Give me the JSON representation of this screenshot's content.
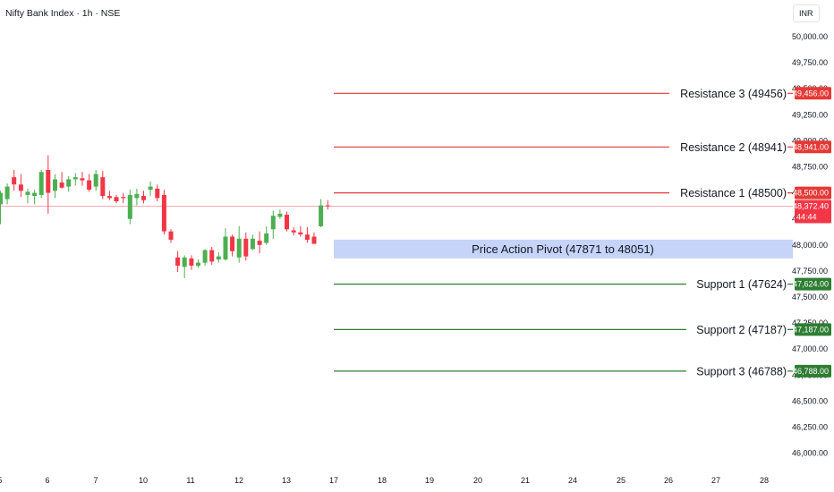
{
  "header": {
    "symbol_title": "Nifty Bank Index · 1h · NSE",
    "currency": "INR"
  },
  "colors": {
    "up": "#4caf50",
    "down": "#f23645",
    "resistance": "#e53935",
    "support": "#2e7d32",
    "pivot_zone": "#c5d4f8",
    "last_price_line": "#f4a9b0"
  },
  "chart_data": {
    "type": "candlestick",
    "title": "Nifty Bank Index · 1h · NSE",
    "currency": "INR",
    "ylim": [
      45900,
      50200
    ],
    "y_ticks": [
      "50,000.00",
      "49,750.00",
      "49,500.00",
      "49,250.00",
      "49,000.00",
      "48,750.00",
      "48,500.00",
      "48,250.00",
      "48,000.00",
      "47,750.00",
      "47,500.00",
      "47,250.00",
      "47,000.00",
      "46,750.00",
      "46,500.00",
      "46,250.00",
      "46,000.00"
    ],
    "x_ticks": [
      "5",
      "6",
      "7",
      "10",
      "11",
      "12",
      "13",
      "17",
      "18",
      "19",
      "20",
      "21",
      "24",
      "25",
      "26",
      "27",
      "28"
    ],
    "candles": [
      {
        "o": 48390,
        "h": 48520,
        "l": 48200,
        "c": 48500
      },
      {
        "o": 48440,
        "h": 48590,
        "l": 48390,
        "c": 48560
      },
      {
        "o": 48650,
        "h": 48720,
        "l": 48520,
        "c": 48580
      },
      {
        "o": 48580,
        "h": 48680,
        "l": 48460,
        "c": 48520
      },
      {
        "o": 48480,
        "h": 48540,
        "l": 48400,
        "c": 48510
      },
      {
        "o": 48470,
        "h": 48530,
        "l": 48390,
        "c": 48500
      },
      {
        "o": 48480,
        "h": 48720,
        "l": 48450,
        "c": 48700
      },
      {
        "o": 48720,
        "h": 48860,
        "l": 48300,
        "c": 48500
      },
      {
        "o": 48520,
        "h": 48680,
        "l": 48450,
        "c": 48630
      },
      {
        "o": 48600,
        "h": 48700,
        "l": 48540,
        "c": 48550
      },
      {
        "o": 48560,
        "h": 48660,
        "l": 48510,
        "c": 48630
      },
      {
        "o": 48630,
        "h": 48690,
        "l": 48570,
        "c": 48650
      },
      {
        "o": 48640,
        "h": 48700,
        "l": 48570,
        "c": 48620
      },
      {
        "o": 48620,
        "h": 48680,
        "l": 48510,
        "c": 48530
      },
      {
        "o": 48560,
        "h": 48720,
        "l": 48520,
        "c": 48680
      },
      {
        "o": 48650,
        "h": 48710,
        "l": 48440,
        "c": 48470
      },
      {
        "o": 48470,
        "h": 48520,
        "l": 48430,
        "c": 48450
      },
      {
        "o": 48460,
        "h": 48480,
        "l": 48400,
        "c": 48420
      },
      {
        "o": 48460,
        "h": 48500,
        "l": 48400,
        "c": 48450
      },
      {
        "o": 48250,
        "h": 48530,
        "l": 48200,
        "c": 48480
      },
      {
        "o": 48450,
        "h": 48540,
        "l": 48380,
        "c": 48490
      },
      {
        "o": 48470,
        "h": 48520,
        "l": 48400,
        "c": 48430
      },
      {
        "o": 48530,
        "h": 48610,
        "l": 48470,
        "c": 48560
      },
      {
        "o": 48540,
        "h": 48580,
        "l": 48420,
        "c": 48450
      },
      {
        "o": 48480,
        "h": 48530,
        "l": 48100,
        "c": 48130
      },
      {
        "o": 48130,
        "h": 48150,
        "l": 48020,
        "c": 48050
      },
      {
        "o": 47880,
        "h": 47940,
        "l": 47740,
        "c": 47800
      },
      {
        "o": 47790,
        "h": 47900,
        "l": 47680,
        "c": 47880
      },
      {
        "o": 47870,
        "h": 47900,
        "l": 47760,
        "c": 47800
      },
      {
        "o": 47800,
        "h": 47860,
        "l": 47780,
        "c": 47830
      },
      {
        "o": 47830,
        "h": 47960,
        "l": 47800,
        "c": 47950
      },
      {
        "o": 47950,
        "h": 47980,
        "l": 47810,
        "c": 47840
      },
      {
        "o": 47860,
        "h": 47930,
        "l": 47830,
        "c": 47890
      },
      {
        "o": 47860,
        "h": 48160,
        "l": 47850,
        "c": 48080
      },
      {
        "o": 48080,
        "h": 48100,
        "l": 47890,
        "c": 47940
      },
      {
        "o": 47880,
        "h": 48180,
        "l": 47830,
        "c": 48060
      },
      {
        "o": 48060,
        "h": 48120,
        "l": 47850,
        "c": 47890
      },
      {
        "o": 47960,
        "h": 48100,
        "l": 47950,
        "c": 48060
      },
      {
        "o": 48040,
        "h": 48130,
        "l": 47920,
        "c": 48000
      },
      {
        "o": 48020,
        "h": 48180,
        "l": 48000,
        "c": 48110
      },
      {
        "o": 48150,
        "h": 48330,
        "l": 48060,
        "c": 48280
      },
      {
        "o": 48270,
        "h": 48340,
        "l": 48250,
        "c": 48300
      },
      {
        "o": 48290,
        "h": 48320,
        "l": 48130,
        "c": 48150
      },
      {
        "o": 48140,
        "h": 48170,
        "l": 48090,
        "c": 48120
      },
      {
        "o": 48120,
        "h": 48180,
        "l": 48080,
        "c": 48100
      },
      {
        "o": 48100,
        "h": 48170,
        "l": 48020,
        "c": 48050
      },
      {
        "o": 48080,
        "h": 48120,
        "l": 48020,
        "c": 48010
      },
      {
        "o": 48180,
        "h": 48440,
        "l": 48170,
        "c": 48380
      },
      {
        "o": 48380,
        "h": 48430,
        "l": 48340,
        "c": 48372
      }
    ],
    "last_price": {
      "value": 48372.4,
      "label": "48,372.40",
      "countdown": "44:44"
    },
    "levels": [
      {
        "name": "Resistance 3 (49456)",
        "value": 49456,
        "badge": "49,456.00",
        "kind": "resistance"
      },
      {
        "name": "Resistance 2 (48941)",
        "value": 48941,
        "badge": "48,941.00",
        "kind": "resistance"
      },
      {
        "name": "Resistance 1 (48500)",
        "value": 48500,
        "badge": "48,500.00",
        "kind": "resistance"
      },
      {
        "name": "Support 1 (47624)",
        "value": 47624,
        "badge": "47,624.00",
        "kind": "support"
      },
      {
        "name": "Support 2 (47187)",
        "value": 47187,
        "badge": "47,187.00",
        "kind": "support"
      },
      {
        "name": "Support 3 (46788)",
        "value": 46788,
        "badge": "46,788.00",
        "kind": "support"
      }
    ],
    "pivot_zone": {
      "label": "Price Action Pivot (47871 to 48051)",
      "low": 47871,
      "high": 48051
    }
  }
}
